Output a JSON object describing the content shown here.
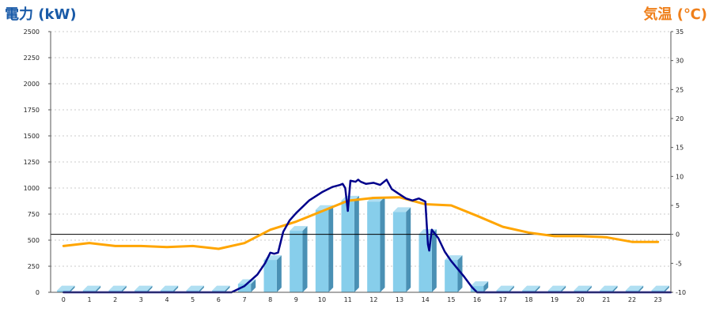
{
  "chart_data": {
    "type": "bar+line",
    "title": "",
    "y_left_label": "電力 (kW)",
    "y_right_label": "気温 (℃)",
    "categories": [
      "0",
      "1",
      "2",
      "3",
      "4",
      "5",
      "6",
      "7",
      "8",
      "9",
      "10",
      "11",
      "12",
      "13",
      "14",
      "15",
      "16",
      "17",
      "18",
      "19",
      "20",
      "21",
      "22",
      "23"
    ],
    "y_left": {
      "min": 0,
      "max": 2500,
      "ticks": [
        "0",
        "250",
        "500",
        "750",
        "1000",
        "1250",
        "1500",
        "1750",
        "2000",
        "2250",
        "2500"
      ]
    },
    "y_right": {
      "min": -10,
      "max": 35,
      "ticks": [
        "-10",
        "-5",
        "0",
        "5",
        "10",
        "15",
        "20",
        "25",
        "30",
        "35"
      ]
    },
    "bars": {
      "name": "",
      "values": [
        18,
        18,
        18,
        18,
        18,
        18,
        18,
        80,
        310,
        590,
        790,
        880,
        870,
        770,
        560,
        310,
        60,
        18,
        18,
        18,
        18,
        18,
        18,
        18
      ]
    },
    "power_line": {
      "name": "",
      "x": [
        0,
        6.5,
        7.0,
        7.5,
        7.8,
        8.0,
        8.15,
        8.3,
        8.5,
        8.75,
        9.0,
        9.5,
        10.0,
        10.4,
        10.7,
        10.8,
        10.9,
        11.0,
        11.1,
        11.3,
        11.4,
        11.5,
        11.7,
        12.0,
        12.25,
        12.5,
        12.7,
        13.0,
        13.25,
        13.5,
        13.75,
        14.0,
        14.1,
        14.15,
        14.25,
        14.5,
        14.75,
        15.0,
        15.5,
        15.8,
        16.0,
        16.5,
        23.5
      ],
      "y": [
        0,
        0,
        60,
        170,
        280,
        380,
        370,
        380,
        580,
        690,
        760,
        880,
        960,
        1010,
        1030,
        1040,
        1000,
        780,
        1070,
        1060,
        1080,
        1060,
        1040,
        1050,
        1030,
        1080,
        990,
        940,
        900,
        880,
        900,
        870,
        460,
        400,
        600,
        520,
        390,
        300,
        150,
        50,
        0,
        0,
        0
      ]
    },
    "temperature_line": {
      "name": "",
      "x": [
        0,
        1,
        2,
        3,
        4,
        5,
        6,
        7,
        8,
        9,
        10,
        11,
        12,
        13,
        14,
        15,
        16,
        17,
        18,
        19,
        20,
        21,
        22,
        23
      ],
      "y": [
        -2.0,
        -1.5,
        -2.0,
        -2.0,
        -2.2,
        -2.0,
        -2.5,
        -1.5,
        0.8,
        2.2,
        4.0,
        5.8,
        6.3,
        6.4,
        5.2,
        5.0,
        3.2,
        1.3,
        0.3,
        -0.3,
        -0.3,
        -0.5,
        -1.3,
        -1.3
      ]
    },
    "reference_line_value": 0,
    "grid": "horizontal dashed",
    "colors": {
      "bar_face": "#87CEEB",
      "bar_side": "#4A90B4",
      "bar_top": "#B0DFF2",
      "power_line": "#00008B",
      "temperature_line": "#FFA500",
      "left_title": "#1A5BA8",
      "right_title": "#EF7F1A",
      "grid": "#BBBBBB"
    }
  }
}
